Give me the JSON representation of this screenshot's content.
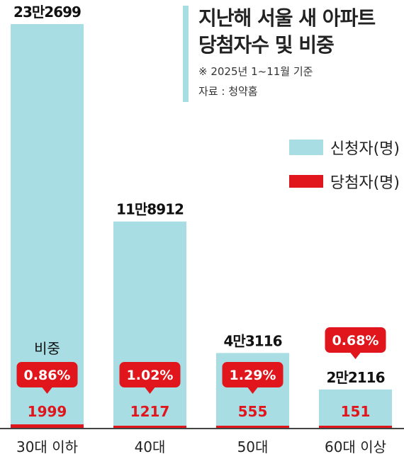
{
  "chart_data": {
    "type": "bar",
    "title": [
      "지난해 서울 새 아파트",
      "당첨자수 및 비중"
    ],
    "note": "※ 2025년 1~11월 기준",
    "source": "자료 : 청약홈",
    "ratio_prefix": "비중",
    "categories": [
      "30대 이하",
      "40대",
      "50대",
      "60대 이상"
    ],
    "series": [
      {
        "name": "신청자(명)",
        "color": "#a8dde3",
        "values": [
          232699,
          118912,
          43116,
          22116
        ],
        "labels": [
          "23만2699",
          "11만8912",
          "4만3116",
          "2만2116"
        ]
      },
      {
        "name": "당첨자(명)",
        "color": "#e0161c",
        "values": [
          1999,
          1217,
          555,
          151
        ],
        "labels": [
          "1999",
          "1217",
          "555",
          "151"
        ]
      }
    ],
    "ratios": [
      "0.86%",
      "1.02%",
      "1.29%",
      "0.68%"
    ],
    "ylim": [
      0,
      232699
    ]
  }
}
